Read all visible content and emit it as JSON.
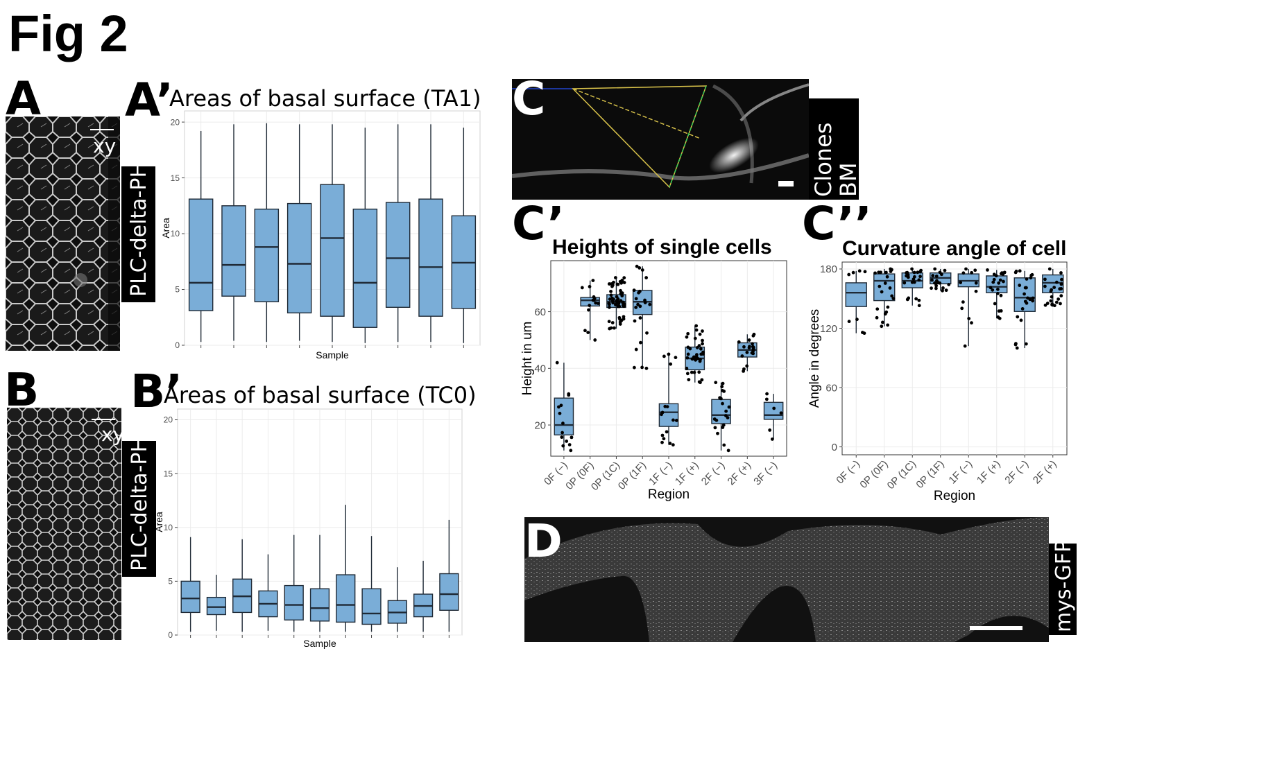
{
  "figure": {
    "title": "Fig 2",
    "panels": {
      "A": "A",
      "A_prime": "A’",
      "B": "B",
      "B_prime": "B’",
      "C": "C",
      "C_prime": "C’",
      "C_dprime": "C’’",
      "D": "D"
    },
    "image_labels": {
      "xy_A": "xy",
      "xy_B": "xy",
      "plc_A": "PLC-delta-PH",
      "plc_B": "PLC-delta-PH",
      "clones": "Clones",
      "bm": "BM",
      "mys": "mys-GFP"
    },
    "colors": {
      "box_fill": "#7AADD7",
      "box_stroke": "#1f2a36",
      "grid": "#ebebeb",
      "point": "#000000"
    }
  },
  "chart_data": [
    {
      "id": "areas_ta1",
      "type": "box",
      "title": "Areas of basal surface (TA1)",
      "xlabel": "Sample",
      "ylabel": "Area",
      "ylim": [
        0,
        21
      ],
      "yticks": [
        0,
        5,
        10,
        15,
        20
      ],
      "grid": true,
      "boxes": [
        {
          "min": 0.3,
          "q1": 3.1,
          "median": 5.6,
          "q3": 13.1,
          "max": 19.2
        },
        {
          "min": 0.4,
          "q1": 4.4,
          "median": 7.2,
          "q3": 12.5,
          "max": 19.8
        },
        {
          "min": 0.3,
          "q1": 3.9,
          "median": 8.8,
          "q3": 12.2,
          "max": 19.9
        },
        {
          "min": 0.4,
          "q1": 2.9,
          "median": 7.3,
          "q3": 12.7,
          "max": 19.8
        },
        {
          "min": 0.3,
          "q1": 2.6,
          "median": 9.6,
          "q3": 14.4,
          "max": 19.8
        },
        {
          "min": 0.2,
          "q1": 1.6,
          "median": 5.6,
          "q3": 12.2,
          "max": 19.5
        },
        {
          "min": 0.3,
          "q1": 3.4,
          "median": 7.8,
          "q3": 12.8,
          "max": 19.8
        },
        {
          "min": 0.3,
          "q1": 2.6,
          "median": 7.0,
          "q3": 13.1,
          "max": 19.8
        },
        {
          "min": 0.2,
          "q1": 3.3,
          "median": 7.4,
          "q3": 11.6,
          "max": 19.5
        }
      ]
    },
    {
      "id": "areas_tc0",
      "type": "box",
      "title": "Areas of basal surface (TC0)",
      "xlabel": "Sample",
      "ylabel": "Area",
      "ylim": [
        0,
        21
      ],
      "yticks": [
        0,
        5,
        10,
        15,
        20
      ],
      "grid": true,
      "boxes": [
        {
          "min": 0.3,
          "q1": 2.1,
          "median": 3.4,
          "q3": 5.0,
          "max": 9.1
        },
        {
          "min": 0.4,
          "q1": 1.9,
          "median": 2.6,
          "q3": 3.5,
          "max": 5.6
        },
        {
          "min": 0.3,
          "q1": 2.1,
          "median": 3.6,
          "q3": 5.2,
          "max": 8.9
        },
        {
          "min": 0.4,
          "q1": 1.7,
          "median": 2.9,
          "q3": 4.1,
          "max": 7.5
        },
        {
          "min": 0.3,
          "q1": 1.4,
          "median": 2.8,
          "q3": 4.6,
          "max": 9.3
        },
        {
          "min": 0.3,
          "q1": 1.3,
          "median": 2.5,
          "q3": 4.3,
          "max": 9.3
        },
        {
          "min": 0.3,
          "q1": 1.2,
          "median": 2.8,
          "q3": 5.6,
          "max": 12.1
        },
        {
          "min": 0.3,
          "q1": 1.0,
          "median": 2.0,
          "q3": 4.3,
          "max": 9.2
        },
        {
          "min": 0.3,
          "q1": 1.1,
          "median": 2.1,
          "q3": 3.2,
          "max": 6.3
        },
        {
          "min": 0.3,
          "q1": 1.7,
          "median": 2.7,
          "q3": 3.8,
          "max": 6.9
        },
        {
          "min": 0.3,
          "q1": 2.3,
          "median": 3.8,
          "q3": 5.7,
          "max": 10.7
        }
      ]
    },
    {
      "id": "heights",
      "type": "box",
      "title": "Heights of single cells",
      "xlabel": "Region",
      "ylabel": "Height in um",
      "ylim": [
        9,
        78
      ],
      "yticks": [
        20,
        40,
        60
      ],
      "grid": true,
      "categories": [
        "0F (−)",
        "0P (0F)",
        "0P (1C)",
        "0P (1F)",
        "1F (−)",
        "1F (+)",
        "2F (−)",
        "2F (+)",
        "3F (−)"
      ],
      "boxes": [
        {
          "min": 11,
          "q1": 16.5,
          "median": 20,
          "q3": 29.5,
          "max": 42,
          "n": 14
        },
        {
          "min": 50,
          "q1": 62,
          "median": 64,
          "q3": 65,
          "max": 71,
          "n": 14
        },
        {
          "min": 54,
          "q1": 61.5,
          "median": 63.5,
          "q3": 66,
          "max": 72,
          "n": 60
        },
        {
          "min": 40,
          "q1": 59,
          "median": 63.5,
          "q3": 67.5,
          "max": 76,
          "n": 22
        },
        {
          "min": 13,
          "q1": 19.5,
          "median": 24.5,
          "q3": 27.5,
          "max": 45,
          "n": 16
        },
        {
          "min": 35,
          "q1": 39.5,
          "median": 43.5,
          "q3": 47.5,
          "max": 55,
          "n": 38
        },
        {
          "min": 11,
          "q1": 20.5,
          "median": 23.5,
          "q3": 29,
          "max": 35,
          "n": 20
        },
        {
          "min": 39,
          "q1": 44,
          "median": 46.5,
          "q3": 49,
          "max": 52,
          "n": 20
        },
        {
          "min": 15,
          "q1": 22,
          "median": 23.5,
          "q3": 28,
          "max": 31,
          "n": 6
        }
      ]
    },
    {
      "id": "curvature",
      "type": "box",
      "title": "Curvature angle of cell",
      "xlabel": "Region",
      "ylabel": "Angle in degrees",
      "ylim": [
        -8,
        187
      ],
      "yticks": [
        0,
        60,
        120,
        180
      ],
      "grid": true,
      "categories": [
        "0F (−)",
        "0P (0F)",
        "0P (1C)",
        "0P (1F)",
        "1F (−)",
        "1F (+)",
        "2F (−)",
        "2F (+)"
      ],
      "boxes": [
        {
          "min": 115,
          "q1": 142,
          "median": 156,
          "q3": 166,
          "max": 178,
          "n": 8
        },
        {
          "min": 122,
          "q1": 148,
          "median": 168,
          "q3": 175,
          "max": 180,
          "n": 22
        },
        {
          "min": 143,
          "q1": 161,
          "median": 168,
          "q3": 176,
          "max": 180,
          "n": 22
        },
        {
          "min": 158,
          "q1": 165,
          "median": 171,
          "q3": 176,
          "max": 180,
          "n": 20
        },
        {
          "min": 102,
          "q1": 162,
          "median": 168,
          "q3": 175,
          "max": 180,
          "n": 12
        },
        {
          "min": 130,
          "q1": 156,
          "median": 162,
          "q3": 173,
          "max": 179,
          "n": 22
        },
        {
          "min": 100,
          "q1": 137,
          "median": 151,
          "q3": 171,
          "max": 178,
          "n": 24
        },
        {
          "min": 143,
          "q1": 156,
          "median": 166,
          "q3": 174,
          "max": 180,
          "n": 24
        }
      ]
    }
  ]
}
